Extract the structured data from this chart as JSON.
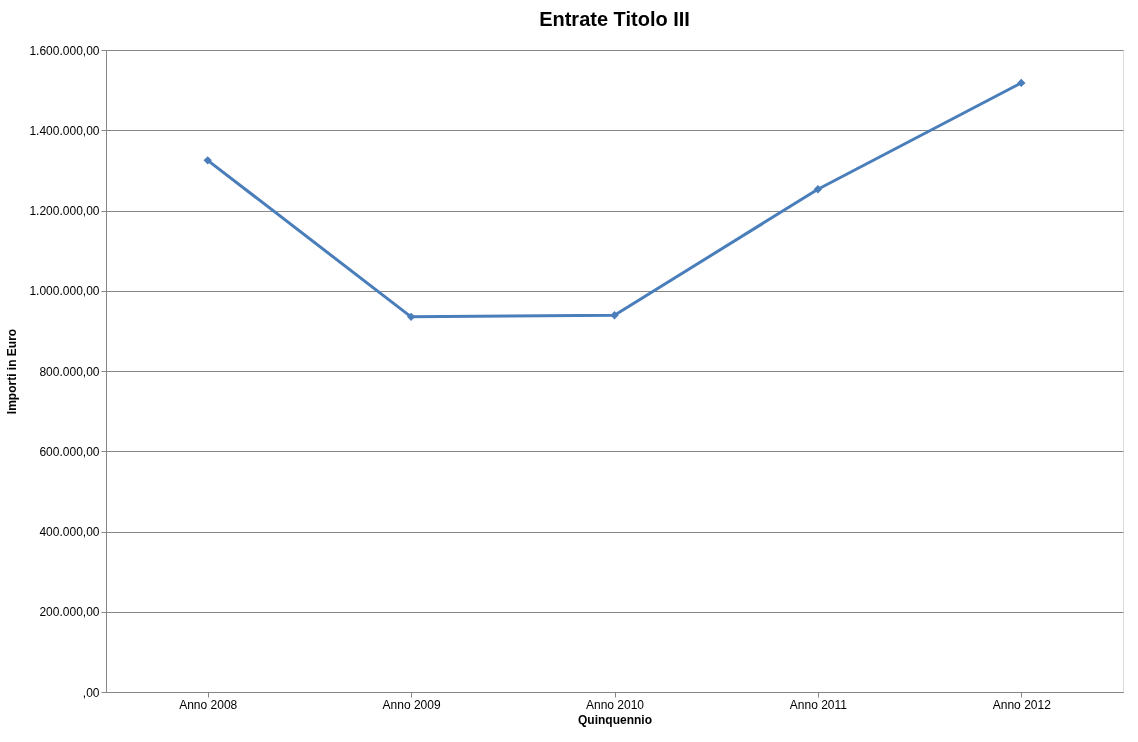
{
  "chart_data": {
    "type": "line",
    "title": "Entrate Titolo III",
    "xlabel": "Quinquennio",
    "ylabel": "Importi in Euro",
    "categories": [
      "Anno 2008",
      "Anno 2009",
      "Anno 2010",
      "Anno 2011",
      "Anno 2012"
    ],
    "series": [
      {
        "color": "#4a7ebb",
        "values": [
          1325000,
          935000,
          939000,
          1253000,
          1518000
        ]
      }
    ],
    "ylim": [
      0,
      1600000
    ],
    "yticks": [
      {
        "value": 0,
        "label": ",00"
      },
      {
        "value": 200000,
        "label": "200.000,00"
      },
      {
        "value": 400000,
        "label": "400.000,00"
      },
      {
        "value": 600000,
        "label": "600.000,00"
      },
      {
        "value": 800000,
        "label": "800.000,00"
      },
      {
        "value": 1000000,
        "label": "1.000.000,00"
      },
      {
        "value": 1200000,
        "label": "1.200.000,00"
      },
      {
        "value": 1400000,
        "label": "1.400.000,00"
      },
      {
        "value": 1600000,
        "label": "1.600.000,00"
      }
    ],
    "grid": "y",
    "marker": "diamond",
    "line_style": "solid"
  }
}
